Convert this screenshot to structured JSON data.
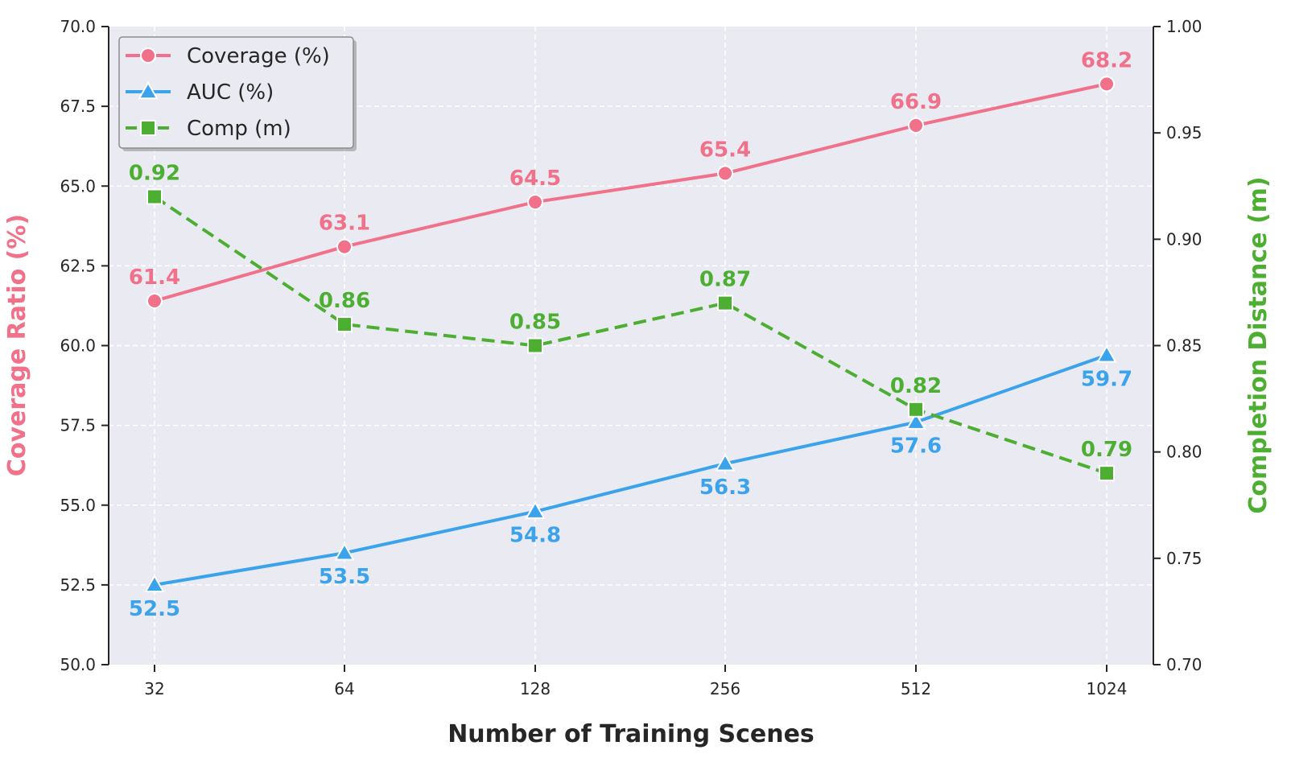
{
  "chart_data": {
    "type": "line",
    "xlabel": "Number of Training Scenes",
    "ylabel_left": "Coverage Ratio (%)",
    "ylabel_right": "Completion Distance (m)",
    "categories": [
      "32",
      "64",
      "128",
      "256",
      "512",
      "1024"
    ],
    "ylim_left": [
      50.0,
      70.0
    ],
    "ylim_right": [
      0.7,
      1.0
    ],
    "yticks_left": [
      "50.0",
      "52.5",
      "55.0",
      "57.5",
      "60.0",
      "62.5",
      "65.0",
      "67.5",
      "70.0"
    ],
    "yticks_right": [
      "0.70",
      "0.75",
      "0.80",
      "0.85",
      "0.90",
      "0.95",
      "1.00"
    ],
    "grid": true,
    "legend_position": "top-left",
    "series": [
      {
        "name": "Coverage (%)",
        "axis": "left",
        "color": "#f07189",
        "marker": "circle",
        "line_style": "solid",
        "values": [
          61.4,
          63.1,
          64.5,
          65.4,
          66.9,
          68.2
        ],
        "labels": [
          "61.4",
          "63.1",
          "64.5",
          "65.4",
          "66.9",
          "68.2"
        ],
        "label_position": "above"
      },
      {
        "name": "AUC (%)",
        "axis": "left",
        "color": "#3ba3ec",
        "marker": "triangle",
        "line_style": "solid",
        "values": [
          52.5,
          53.5,
          54.8,
          56.3,
          57.6,
          59.7
        ],
        "labels": [
          "52.5",
          "53.5",
          "54.8",
          "56.3",
          "57.6",
          "59.7"
        ],
        "label_position": "below"
      },
      {
        "name": "Comp (m)",
        "axis": "right",
        "color": "#4caf32",
        "marker": "square",
        "line_style": "dashed",
        "values": [
          0.92,
          0.86,
          0.85,
          0.87,
          0.82,
          0.79
        ],
        "labels": [
          "0.92",
          "0.86",
          "0.85",
          "0.87",
          "0.82",
          "0.79"
        ],
        "label_position": "above"
      }
    ],
    "colors": {
      "plot_background": "#eaeaf2",
      "grid": "#ffffff",
      "left_axis_title": "#f07189",
      "right_axis_title": "#4caf32",
      "x_axis_title": "#262626"
    }
  }
}
